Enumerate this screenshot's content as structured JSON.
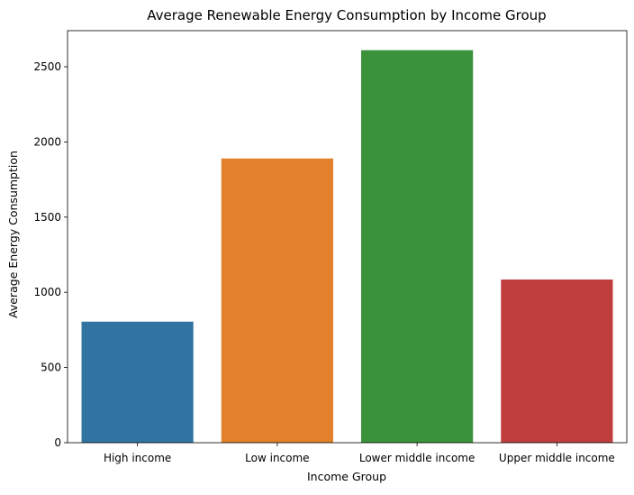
{
  "chart_data": {
    "type": "bar",
    "title": "Average Renewable Energy Consumption by Income Group",
    "xlabel": "Income Group",
    "ylabel": "Average Energy Consumption",
    "categories": [
      "High income",
      "Low income",
      "Lower middle income",
      "Upper middle income"
    ],
    "values": [
      805,
      1890,
      2610,
      1085
    ],
    "colors": [
      "#3274a1",
      "#e1812c",
      "#3a923a",
      "#c03d3e"
    ],
    "ylim": [
      0,
      2740
    ],
    "yticks": [
      0,
      500,
      1000,
      1500,
      2000,
      2500
    ],
    "grid": false,
    "legend": "none"
  }
}
